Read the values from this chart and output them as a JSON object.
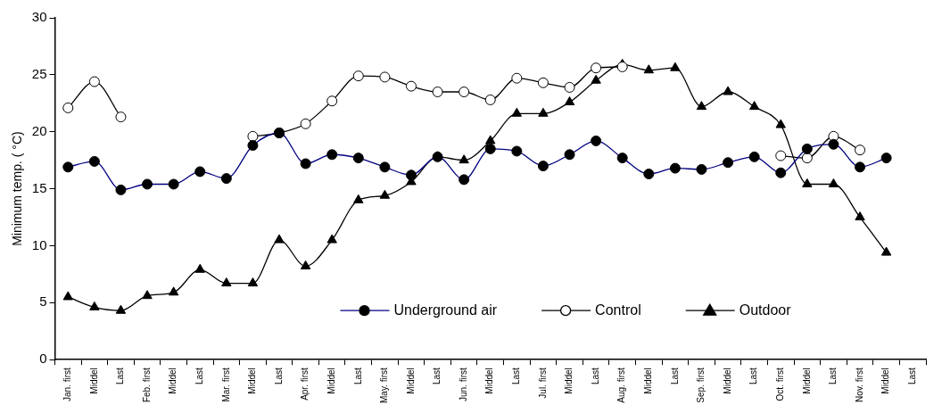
{
  "chart_data": {
    "type": "line",
    "ylabel": "Minimum temp. ( °C)",
    "categories": [
      "Jan. first",
      "Middel",
      "Last",
      "Feb. first",
      "Middel",
      "Last",
      "Mar. first",
      "Middel",
      "Last",
      "Apr. first",
      "Middel",
      "Last",
      "May. first",
      "Middel",
      "Last",
      "Jun. first",
      "Middel",
      "Last",
      "Jul. first",
      "Middel",
      "Last",
      "Aug. first",
      "Middel",
      "Last",
      "Sep. first",
      "Middel",
      "Last",
      "Oct. first",
      "Middel",
      "Last",
      "Nov. first",
      "Middel",
      "Last"
    ],
    "series": [
      {
        "name": "Underground air",
        "color": "#000080",
        "marker": "circle",
        "values": [
          16.9,
          17.4,
          14.9,
          15.4,
          15.4,
          16.5,
          15.9,
          18.8,
          19.9,
          17.2,
          18.0,
          17.7,
          16.9,
          16.2,
          17.8,
          15.8,
          18.5,
          18.3,
          17.0,
          18.0,
          19.2,
          17.7,
          16.3,
          16.8,
          16.7,
          17.3,
          17.8,
          16.4,
          18.5,
          18.9,
          16.9,
          17.7,
          null
        ]
      },
      {
        "name": "Control",
        "color": "#000000",
        "marker": "circle",
        "values": [
          22.1,
          24.4,
          21.3,
          null,
          null,
          null,
          null,
          19.6,
          19.9,
          20.7,
          22.7,
          24.9,
          24.8,
          24.0,
          23.5,
          23.5,
          22.8,
          24.7,
          24.3,
          23.9,
          25.6,
          25.7,
          null,
          null,
          null,
          null,
          null,
          17.9,
          17.7,
          19.6,
          18.4,
          null,
          null
        ]
      },
      {
        "name": "Outdoor",
        "color": "#000000",
        "marker": "triangle",
        "values": [
          5.5,
          4.6,
          4.3,
          5.6,
          5.9,
          7.9,
          6.7,
          6.7,
          10.5,
          8.2,
          10.5,
          14.0,
          14.4,
          15.6,
          17.8,
          17.5,
          19.2,
          21.6,
          21.6,
          22.6,
          24.5,
          25.9,
          25.4,
          25.6,
          22.2,
          23.5,
          22.2,
          20.6,
          15.4,
          15.4,
          12.5,
          9.4,
          null
        ]
      }
    ],
    "ylim": [
      0,
      30
    ],
    "yticks": [
      0,
      5,
      10,
      15,
      20,
      25,
      30
    ],
    "grid": false,
    "legend": "bottom"
  }
}
